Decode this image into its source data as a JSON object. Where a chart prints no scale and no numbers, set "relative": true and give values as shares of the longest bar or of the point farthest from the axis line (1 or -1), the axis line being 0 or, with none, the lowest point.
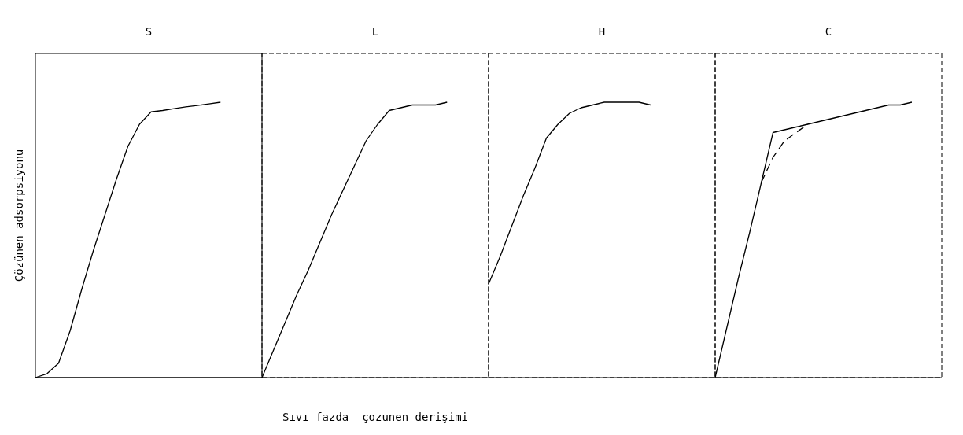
{
  "chart_data": [
    {
      "type": "line",
      "title": "S",
      "ylabel": "Çözünen adsorpsiyonu",
      "relative": true,
      "categories": [
        null,
        null,
        null,
        null,
        null,
        null,
        null,
        null,
        null,
        null,
        null,
        null,
        null,
        null,
        null,
        null,
        null,
        null,
        null,
        null
      ],
      "series": [
        {
          "color": "#000000",
          "line_style": "solid",
          "values": [
            0,
            0.014,
            0.052,
            0.17,
            0.32,
            0.46,
            0.59,
            0.72,
            0.84,
            0.92,
            0.965,
            0.97,
            0.977,
            0.983,
            0.988,
            0.994,
            1,
            null,
            null,
            null
          ]
        }
      ]
    },
    {
      "type": "line",
      "title": "L",
      "xlabel": "Sıvı fazda  çozunen derişimi",
      "relative": true,
      "categories": [
        null,
        null,
        null,
        null,
        null,
        null,
        null,
        null,
        null,
        null,
        null,
        null,
        null,
        null,
        null,
        null,
        null,
        null,
        null,
        null
      ],
      "series": [
        {
          "color": "#000000",
          "line_style": "solid",
          "values": [
            0,
            0.1,
            0.2,
            0.3,
            0.39,
            0.49,
            0.59,
            0.68,
            0.77,
            0.86,
            0.92,
            0.97,
            0.98,
            0.99,
            0.99,
            0.99,
            1,
            null,
            null,
            null
          ]
        }
      ]
    },
    {
      "type": "line",
      "title": "H",
      "relative": true,
      "categories": [
        null,
        null,
        null,
        null,
        null,
        null,
        null,
        null,
        null,
        null,
        null,
        null,
        null,
        null,
        null,
        null,
        null,
        null,
        null,
        null
      ],
      "series": [
        {
          "color": "#000000",
          "line_style": "solid",
          "values": [
            0.34,
            0.44,
            0.55,
            0.66,
            0.76,
            0.87,
            0.92,
            0.96,
            0.98,
            0.99,
            1,
            1,
            1,
            1,
            0.99,
            null,
            null,
            null,
            null,
            null
          ]
        }
      ]
    },
    {
      "type": "line",
      "title": "C",
      "relative": true,
      "categories": [
        null,
        null,
        null,
        null,
        null,
        null,
        null,
        null,
        null,
        null,
        null,
        null,
        null,
        null,
        null,
        null,
        null,
        null,
        null,
        null
      ],
      "series": [
        {
          "color": "#000000",
          "line_style": "solid",
          "values": [
            0,
            0.18,
            0.36,
            0.53,
            0.71,
            0.89,
            0.9,
            0.91,
            0.92,
            0.93,
            0.94,
            0.95,
            0.96,
            0.97,
            0.98,
            0.99,
            0.99,
            1,
            null,
            null
          ]
        },
        {
          "color": "#000000",
          "line_style": "dashed",
          "values": [
            null,
            null,
            null,
            null,
            0.71,
            0.8,
            0.86,
            0.89,
            0.92,
            null,
            null,
            null,
            null,
            null,
            null,
            null,
            null,
            null,
            null,
            null
          ]
        }
      ]
    }
  ]
}
